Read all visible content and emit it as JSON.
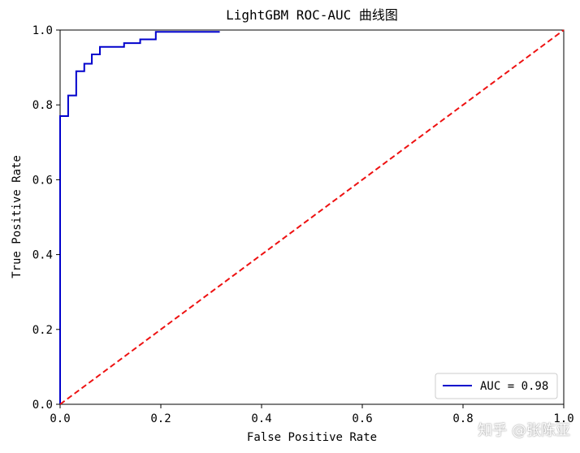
{
  "chart_data": {
    "type": "line",
    "title": "LightGBM ROC-AUC 曲线图",
    "xlabel": "False Positive Rate",
    "ylabel": "True Positive Rate",
    "xlim": [
      0,
      1
    ],
    "ylim": [
      0,
      1
    ],
    "xticks": [
      "0.0",
      "0.2",
      "0.4",
      "0.6",
      "0.8",
      "1.0"
    ],
    "yticks": [
      "0.0",
      "0.2",
      "0.4",
      "0.6",
      "0.8",
      "1.0"
    ],
    "grid": false,
    "legend_position": "bottom-right",
    "series": [
      {
        "name": "AUC = 0.98",
        "color": "#0000cc",
        "style": "solid",
        "x": [
          0.0,
          0.0,
          0.016,
          0.016,
          0.032,
          0.032,
          0.048,
          0.048,
          0.063,
          0.063,
          0.079,
          0.079,
          0.127,
          0.127,
          0.159,
          0.159,
          0.19,
          0.19,
          0.317
        ],
        "y": [
          0.0,
          0.77,
          0.77,
          0.825,
          0.825,
          0.89,
          0.89,
          0.91,
          0.91,
          0.935,
          0.935,
          0.955,
          0.955,
          0.965,
          0.965,
          0.975,
          0.975,
          0.995,
          0.995
        ]
      },
      {
        "name": "",
        "color": "#ee1111",
        "style": "dashed",
        "x": [
          0,
          1
        ],
        "y": [
          0,
          1
        ]
      }
    ]
  },
  "watermark": "知乎 @张陈亚"
}
